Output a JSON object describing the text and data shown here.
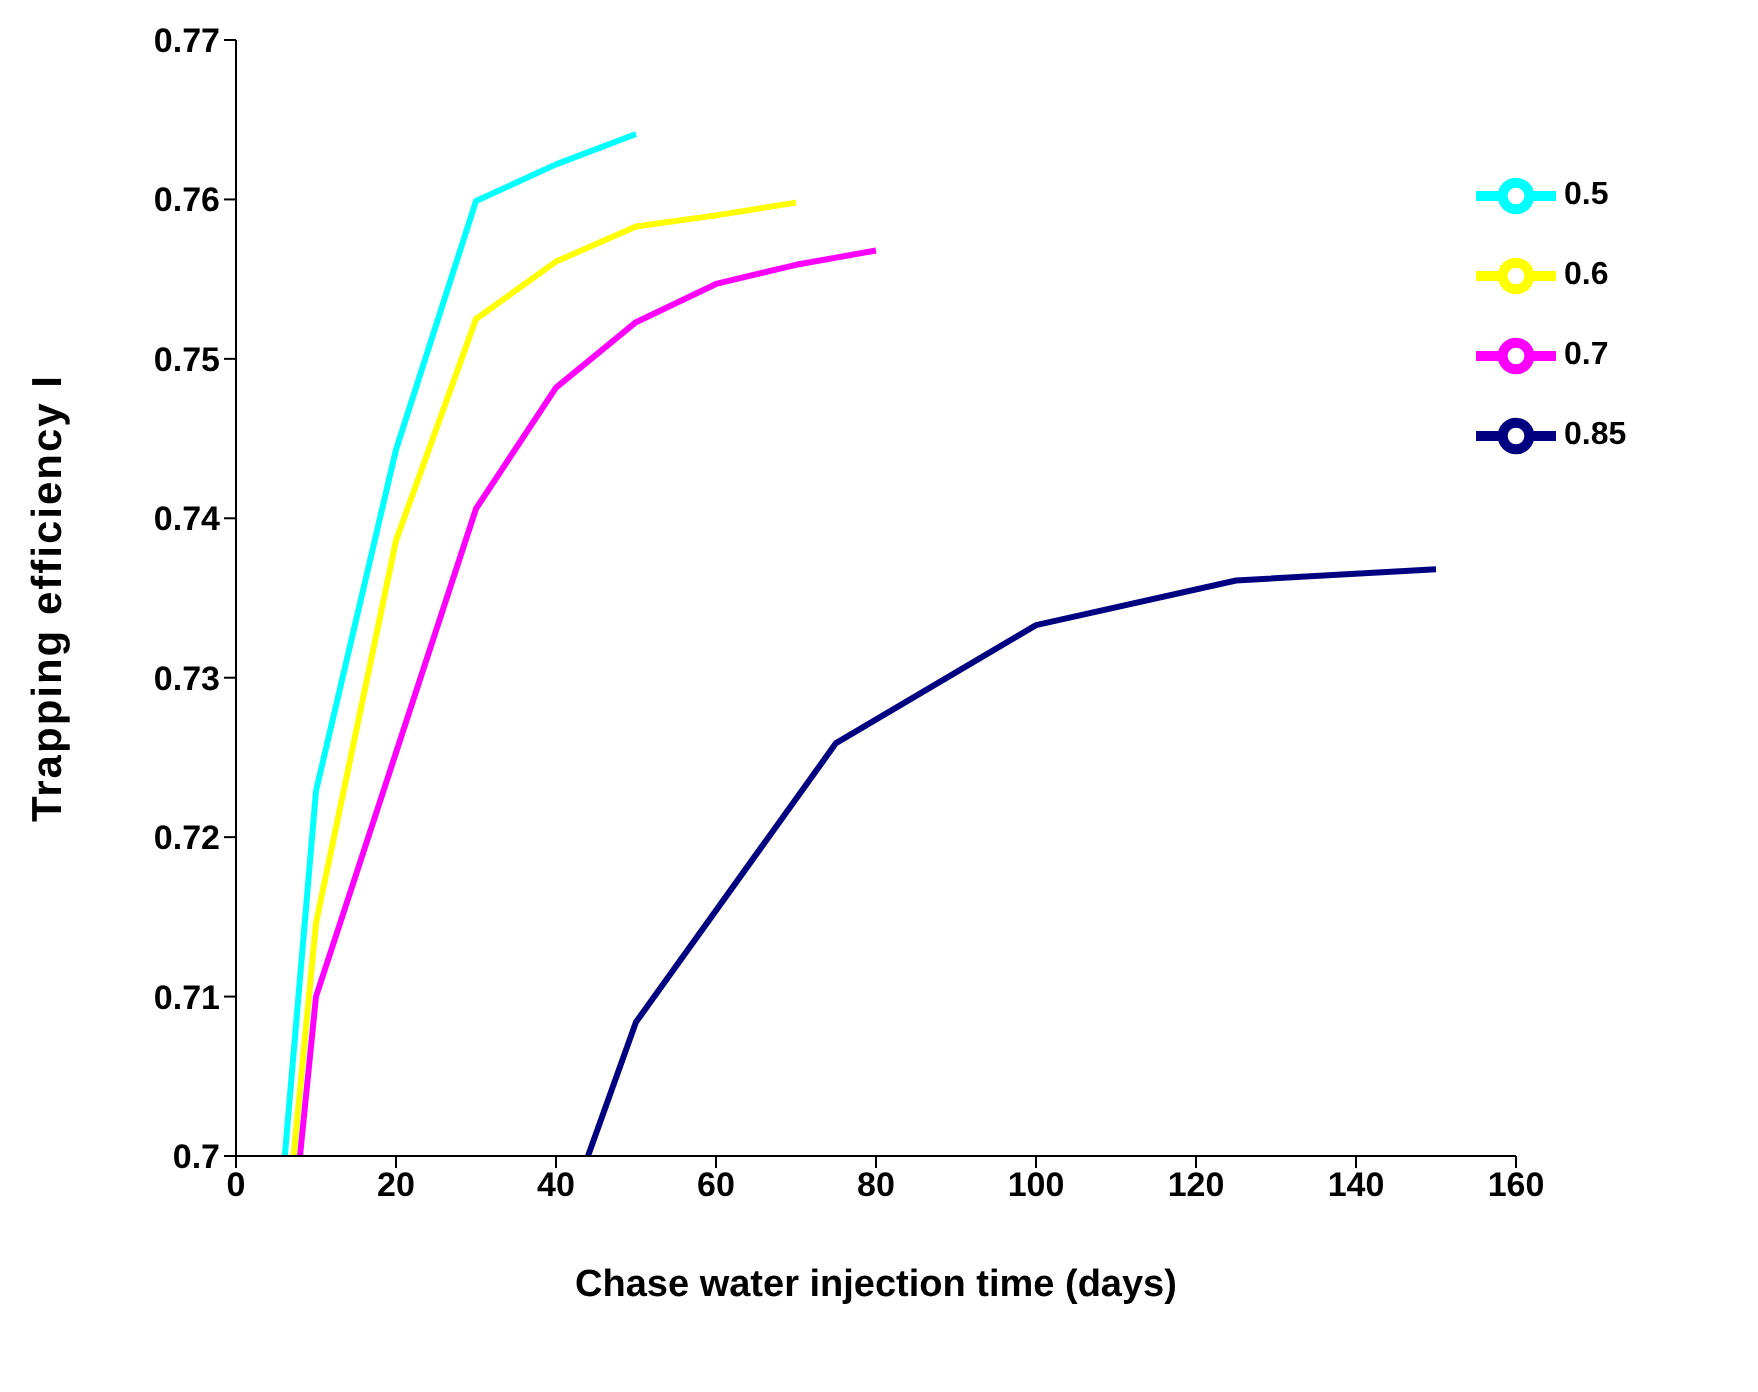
{
  "chart_data": {
    "type": "line",
    "xlabel": "Chase water injection time (days)",
    "ylabel": "Trapping efficiency I",
    "xlim": [
      0,
      160
    ],
    "xticks": [
      0,
      20,
      40,
      60,
      80,
      100,
      120,
      140,
      160
    ],
    "ylim": [
      0.7,
      0.77
    ],
    "yticks": [
      0.7,
      0.71,
      0.72,
      0.73,
      0.74,
      0.75,
      0.76,
      0.77
    ],
    "grid": false,
    "legend": "top right",
    "marker": "none",
    "line_style": "solid",
    "series": [
      {
        "name": "0.85",
        "color": "#000080",
        "x": [
          44,
          50,
          75,
          100,
          125,
          150
        ],
        "values": [
          0.7,
          0.7084,
          0.7259,
          0.7333,
          0.7361,
          0.7368
        ]
      },
      {
        "name": "0.7",
        "color": "#ff00ff",
        "x": [
          8,
          10,
          30,
          40,
          50,
          60,
          70,
          80
        ],
        "values": [
          0.7,
          0.71,
          0.7406,
          0.7482,
          0.7523,
          0.7547,
          0.7559,
          0.7568
        ]
      },
      {
        "name": "0.6",
        "color": "#ffff00",
        "x": [
          7.2,
          10,
          20,
          30,
          40,
          50,
          60,
          70
        ],
        "values": [
          0.7,
          0.7146,
          0.7386,
          0.7525,
          0.7561,
          0.7583,
          0.759,
          0.7598
        ]
      },
      {
        "name": "0.5",
        "color": "#00ffff",
        "x": [
          6.1,
          10,
          20,
          30,
          40,
          50
        ],
        "values": [
          0.7,
          0.7229,
          0.7443,
          0.7599,
          0.7622,
          0.7641
        ]
      }
    ]
  }
}
